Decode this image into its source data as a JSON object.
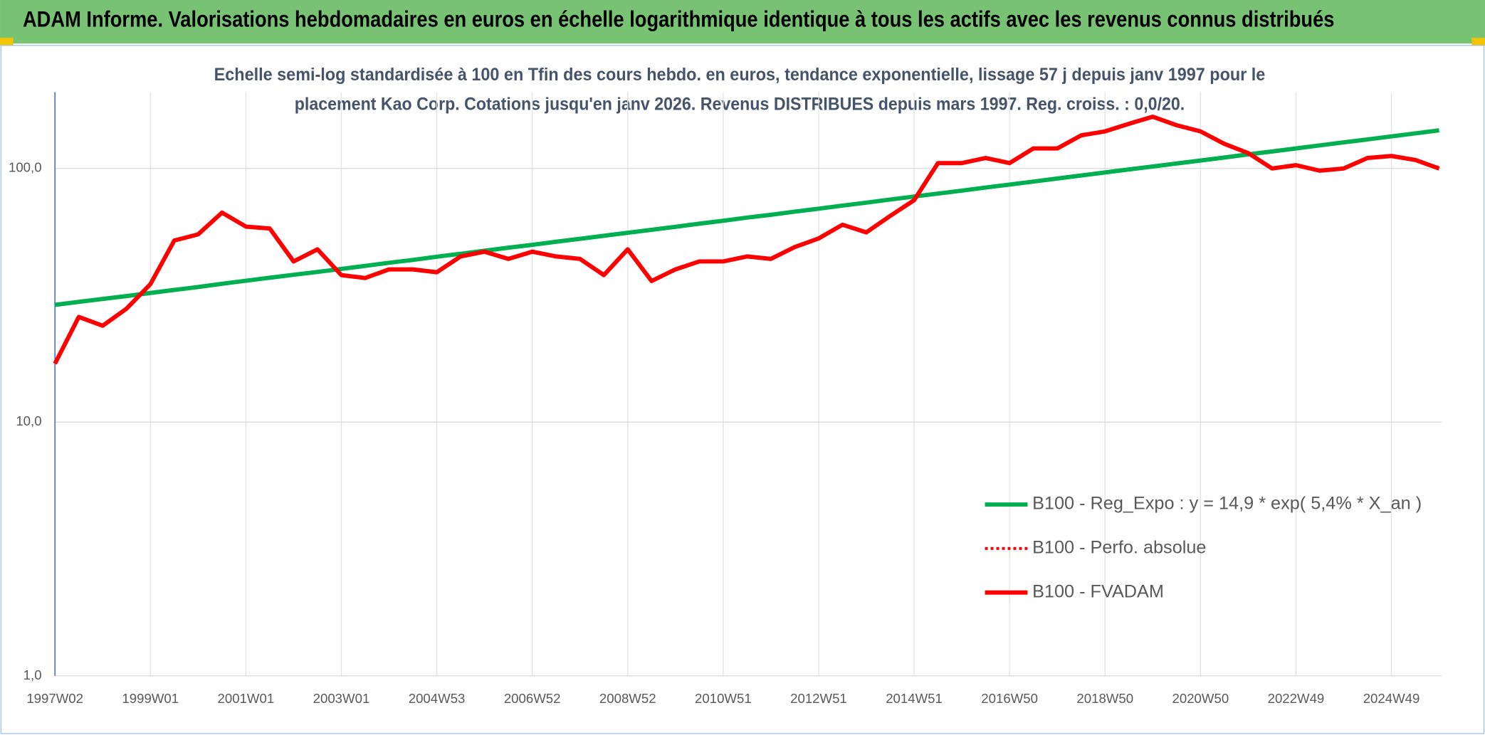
{
  "chart_data": {
    "type": "line",
    "title": "ADAM Informe. Valorisations hebdomadaires en euros en échelle logarithmique identique à tous les actifs avec les revenus connus distribués",
    "subtitle_lines": [
      "Echelle semi-log standardisée à 100 en Tfin des cours hebdo. en euros, tendance exponentielle, lissage 57 j depuis janv 1997 pour le",
      "placement Kao Corp. Cotations jusqu'en janv 2026. Revenus DISTRIBUES depuis mars 1997. Reg. croiss. : 0,0/20."
    ],
    "categories": [
      "1997W02",
      null,
      null,
      null,
      "1999W01",
      null,
      null,
      null,
      "2001W01",
      null,
      null,
      null,
      "2003W01",
      null,
      null,
      null,
      "2004W53",
      null,
      null,
      null,
      "2006W52",
      null,
      null,
      null,
      "2008W52",
      null,
      null,
      null,
      "2010W51",
      null,
      null,
      null,
      "2012W51",
      null,
      null,
      null,
      "2014W51",
      null,
      null,
      null,
      "2016W50",
      null,
      null,
      null,
      "2018W50",
      null,
      null,
      null,
      "2020W50",
      null,
      null,
      null,
      "2022W49",
      null,
      null,
      null,
      "2024W49",
      null,
      null
    ],
    "series": [
      {
        "name": "B100 - Reg_Expo : y = 14,9 * exp( 5,4% *  X_an )",
        "color": "#00b050",
        "dash": false,
        "values": [
          29.0,
          29.8,
          30.6,
          31.4,
          32.3,
          33.2,
          34.1,
          35.1,
          36.1,
          37.1,
          38.1,
          39.1,
          40.2,
          41.3,
          42.5,
          43.6,
          44.9,
          46.1,
          47.4,
          48.7,
          50.0,
          51.4,
          52.8,
          54.3,
          55.8,
          57.3,
          58.9,
          60.6,
          62.2,
          64.0,
          65.7,
          67.6,
          69.4,
          71.4,
          73.3,
          75.4,
          77.5,
          79.6,
          81.8,
          84.1,
          86.4,
          88.8,
          91.3,
          93.8,
          96.4,
          99.1,
          101.8,
          104.6,
          107.5,
          110.5,
          113.6,
          116.7,
          120.0,
          123.3,
          126.7,
          130.2,
          133.8,
          137.5,
          141.3
        ]
      },
      {
        "name": "B100 - Perfo. absolue",
        "color": "#ff0000",
        "dash": true
      },
      {
        "name": "B100 - FVADAM",
        "color": "#ff0000",
        "dash": false,
        "values": [
          17,
          26,
          24,
          28,
          35,
          52,
          55,
          67,
          59,
          58,
          43,
          48,
          38,
          37,
          40,
          40,
          39,
          45,
          47,
          44,
          47,
          45,
          44,
          38,
          48,
          36,
          40,
          43,
          43,
          45,
          44,
          49,
          53,
          60,
          56,
          65,
          75,
          105,
          105,
          110,
          105,
          120,
          120,
          135,
          140,
          150,
          160,
          148,
          140,
          125,
          115,
          100,
          103,
          98,
          100,
          110,
          112,
          108,
          100
        ]
      }
    ],
    "log_scale": true,
    "ylim": [
      1,
      200
    ],
    "yticks": [
      {
        "value": 1,
        "label": "1,0"
      },
      {
        "value": 10,
        "label": "10,0"
      },
      {
        "value": 100,
        "label": "100,0"
      }
    ],
    "grid": true
  }
}
